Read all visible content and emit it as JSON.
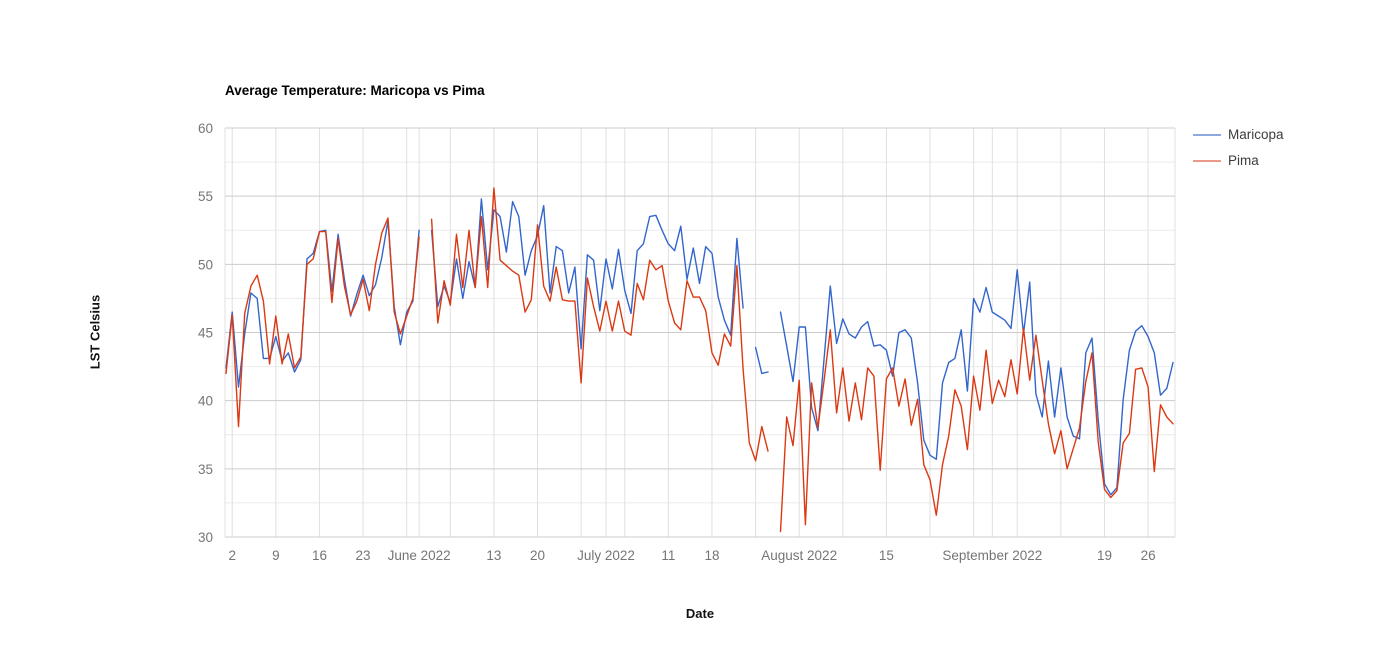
{
  "title": "Average Temperature: Maricopa vs Pima",
  "legend": {
    "position": "right-top",
    "items": [
      {
        "label": "Maricopa",
        "color": "#3366cc",
        "swatch_color": "#8fa9e0"
      },
      {
        "label": "Pima",
        "color": "#dc3912",
        "swatch_color": "#ea9988"
      }
    ]
  },
  "y_axis": {
    "title": "LST Celsius",
    "tick_values": [
      30,
      35,
      40,
      45,
      50,
      55,
      60
    ],
    "minor_gridline_values": [
      32.5,
      37.5,
      42.5,
      47.5,
      52.5,
      57.5
    ]
  },
  "x_axis": {
    "title": "Date",
    "tick_labels": [
      {
        "label": "2",
        "day_index": 1
      },
      {
        "label": "9",
        "day_index": 8
      },
      {
        "label": "16",
        "day_index": 15
      },
      {
        "label": "23",
        "day_index": 22
      },
      {
        "label": "June 2022",
        "day_index": 31
      },
      {
        "label": "13",
        "day_index": 43
      },
      {
        "label": "20",
        "day_index": 50
      },
      {
        "label": "July 2022",
        "day_index": 61
      },
      {
        "label": "11",
        "day_index": 71
      },
      {
        "label": "18",
        "day_index": 78
      },
      {
        "label": "August 2022",
        "day_index": 92
      },
      {
        "label": "15",
        "day_index": 106
      },
      {
        "label": "September 2022",
        "day_index": 123
      },
      {
        "label": "19",
        "day_index": 141
      },
      {
        "label": "26",
        "day_index": 148
      }
    ],
    "unlabeled_gridline_day_indices": [
      29,
      36,
      57,
      64,
      85,
      99,
      113,
      120,
      127,
      134
    ]
  },
  "chart_data": {
    "type": "line",
    "title": "Average Temperature: Maricopa vs Pima",
    "xlabel": "Date",
    "ylabel": "LST Celsius",
    "ylim": [
      30,
      60
    ],
    "grid": true,
    "legend_position": "right-top",
    "x_start_date": "2022-05-01",
    "x_end_date": "2022-09-30",
    "x_frequency": "daily",
    "series": [
      {
        "name": "Maricopa",
        "color": "#3366cc",
        "values": [
          42.4,
          46.5,
          41.0,
          44.9,
          47.9,
          47.5,
          43.1,
          43.1,
          44.7,
          42.9,
          43.5,
          42.1,
          43.0,
          50.4,
          50.8,
          52.4,
          52.5,
          48.0,
          52.2,
          48.9,
          46.2,
          47.8,
          49.2,
          47.7,
          48.5,
          50.5,
          53.2,
          46.9,
          44.1,
          46.5,
          47.3,
          52.5,
          null,
          52.5,
          46.9,
          48.4,
          47.2,
          50.4,
          47.5,
          50.2,
          48.3,
          54.8,
          49.6,
          54.0,
          53.5,
          50.9,
          54.6,
          53.5,
          49.2,
          51.0,
          52.1,
          54.3,
          47.9,
          51.3,
          51.0,
          47.9,
          49.8,
          43.8,
          50.7,
          50.3,
          46.6,
          50.4,
          48.2,
          51.1,
          48.1,
          46.4,
          51.0,
          51.5,
          53.5,
          53.6,
          52.5,
          51.5,
          51.0,
          52.8,
          48.9,
          51.2,
          48.6,
          51.3,
          50.8,
          47.6,
          45.9,
          44.8,
          51.9,
          46.8,
          null,
          43.9,
          42.0,
          42.1,
          null,
          46.5,
          44.0,
          41.4,
          45.4,
          45.4,
          39.5,
          37.8,
          43.1,
          48.4,
          44.2,
          46.0,
          44.9,
          44.6,
          45.4,
          45.8,
          44.0,
          44.1,
          43.7,
          41.8,
          45.0,
          45.2,
          44.6,
          41.3,
          37.1,
          36.0,
          35.7,
          41.3,
          42.8,
          43.1,
          45.2,
          40.7,
          47.5,
          46.5,
          48.3,
          46.5,
          46.2,
          45.9,
          45.3,
          49.6,
          44.9,
          48.7,
          40.5,
          38.8,
          42.9,
          38.8,
          42.4,
          38.8,
          37.4,
          37.2,
          43.5,
          44.6,
          38.6,
          33.9,
          33.1,
          33.6,
          40.1,
          43.7,
          45.1,
          45.5,
          44.7,
          43.5,
          40.4,
          40.9,
          42.8
        ]
      },
      {
        "name": "Pima",
        "color": "#dc3912",
        "values": [
          42.0,
          46.3,
          38.1,
          46.4,
          48.4,
          49.2,
          47.3,
          42.7,
          46.2,
          42.7,
          44.9,
          42.4,
          43.2,
          50.0,
          50.4,
          52.4,
          52.4,
          47.2,
          51.9,
          48.4,
          46.3,
          47.3,
          48.9,
          46.6,
          50.0,
          52.3,
          53.4,
          46.5,
          44.9,
          46.2,
          47.5,
          52.0,
          null,
          53.3,
          45.7,
          48.8,
          47.0,
          52.2,
          48.3,
          52.5,
          48.3,
          53.5,
          48.3,
          55.6,
          50.3,
          49.9,
          49.5,
          49.2,
          46.5,
          47.4,
          52.9,
          48.4,
          47.3,
          49.8,
          47.4,
          47.3,
          47.3,
          41.3,
          49.0,
          46.9,
          45.1,
          47.3,
          45.1,
          47.3,
          45.1,
          44.8,
          48.6,
          47.4,
          50.3,
          49.6,
          49.9,
          47.3,
          45.7,
          45.2,
          48.8,
          47.6,
          47.6,
          46.6,
          43.5,
          42.6,
          44.9,
          44.0,
          49.9,
          42.3,
          36.9,
          35.6,
          38.1,
          36.3,
          null,
          30.4,
          38.8,
          36.7,
          41.5,
          30.9,
          41.3,
          38.0,
          41.5,
          45.2,
          39.1,
          42.4,
          38.5,
          41.3,
          38.6,
          42.4,
          41.8,
          34.9,
          41.6,
          42.4,
          39.6,
          41.6,
          38.2,
          40.1,
          35.3,
          34.2,
          31.6,
          35.3,
          37.4,
          40.8,
          39.6,
          36.4,
          41.8,
          39.3,
          43.7,
          39.8,
          41.5,
          40.3,
          43.0,
          40.5,
          45.3,
          41.5,
          44.8,
          41.5,
          38.3,
          36.1,
          37.8,
          35.0,
          36.5,
          38.0,
          41.4,
          43.5,
          37.0,
          33.5,
          32.9,
          33.4,
          36.9,
          37.6,
          42.3,
          42.4,
          41.0,
          34.8,
          39.7,
          38.8,
          38.3
        ]
      }
    ]
  },
  "colors": {
    "background": "#ffffff",
    "gridline_major": "#cccccc",
    "gridline_minor": "#ebebeb",
    "gridline_vertical": "#e0e0e0",
    "tick_label": "#757575",
    "title_text": "#000000",
    "legend_text": "#3c3c3c"
  }
}
